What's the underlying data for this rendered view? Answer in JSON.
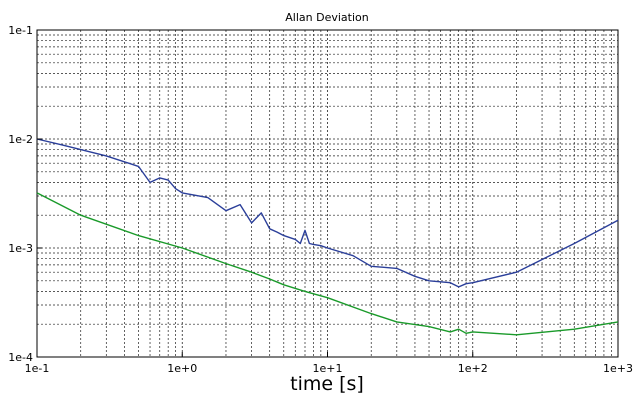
{
  "chart_data": {
    "type": "line",
    "title": "Allan Deviation",
    "xlabel": "time [s]",
    "ylabel": "",
    "xscale": "log",
    "yscale": "log",
    "xlim": [
      0.1,
      1000
    ],
    "ylim": [
      0.0001,
      0.1
    ],
    "grid": true,
    "legend": "none",
    "x_tick_labels": [
      "1e-1",
      "1e+0",
      "1e+1",
      "1e+2",
      "1e+3"
    ],
    "y_tick_labels": [
      "1e-4",
      "1e-3",
      "1e-2",
      "1e-1"
    ],
    "series": [
      {
        "color": "#2b3f9a",
        "points": [
          [
            0.1,
            0.01
          ],
          [
            0.15,
            0.0088
          ],
          [
            0.2,
            0.008
          ],
          [
            0.3,
            0.007
          ],
          [
            0.5,
            0.0056
          ],
          [
            0.6,
            0.004
          ],
          [
            0.7,
            0.0044
          ],
          [
            0.8,
            0.0042
          ],
          [
            0.9,
            0.0035
          ],
          [
            1.0,
            0.0032
          ],
          [
            1.5,
            0.0029
          ],
          [
            2.0,
            0.0022
          ],
          [
            2.5,
            0.0025
          ],
          [
            3.0,
            0.0017
          ],
          [
            3.5,
            0.0021
          ],
          [
            4.0,
            0.0015
          ],
          [
            4.5,
            0.0014
          ],
          [
            5.0,
            0.0013
          ],
          [
            6.0,
            0.0012
          ],
          [
            6.5,
            0.0011
          ],
          [
            7.0,
            0.00145
          ],
          [
            7.5,
            0.0011
          ],
          [
            8.0,
            0.00108
          ],
          [
            9.0,
            0.00105
          ],
          [
            10,
            0.001
          ],
          [
            15,
            0.00085
          ],
          [
            20,
            0.00068
          ],
          [
            30,
            0.00065
          ],
          [
            40,
            0.00055
          ],
          [
            50,
            0.0005
          ],
          [
            60,
            0.00049
          ],
          [
            70,
            0.00048
          ],
          [
            80,
            0.00044
          ],
          [
            90,
            0.00047
          ],
          [
            100,
            0.00048
          ],
          [
            200,
            0.0006
          ],
          [
            500,
            0.0011
          ],
          [
            1000,
            0.0018
          ]
        ]
      },
      {
        "color": "#1a9a2a",
        "points": [
          [
            0.1,
            0.0032
          ],
          [
            0.2,
            0.002
          ],
          [
            0.5,
            0.0013
          ],
          [
            1.0,
            0.001
          ],
          [
            2.0,
            0.00072
          ],
          [
            3.0,
            0.0006
          ],
          [
            4.0,
            0.00052
          ],
          [
            5.0,
            0.00046
          ],
          [
            7.0,
            0.0004
          ],
          [
            10,
            0.00035
          ],
          [
            20,
            0.00025
          ],
          [
            30,
            0.00021
          ],
          [
            50,
            0.00019
          ],
          [
            70,
            0.00017
          ],
          [
            80,
            0.00018
          ],
          [
            90,
            0.000165
          ],
          [
            100,
            0.00017
          ],
          [
            200,
            0.00016
          ],
          [
            500,
            0.00018
          ],
          [
            1000,
            0.00021
          ]
        ]
      }
    ]
  }
}
